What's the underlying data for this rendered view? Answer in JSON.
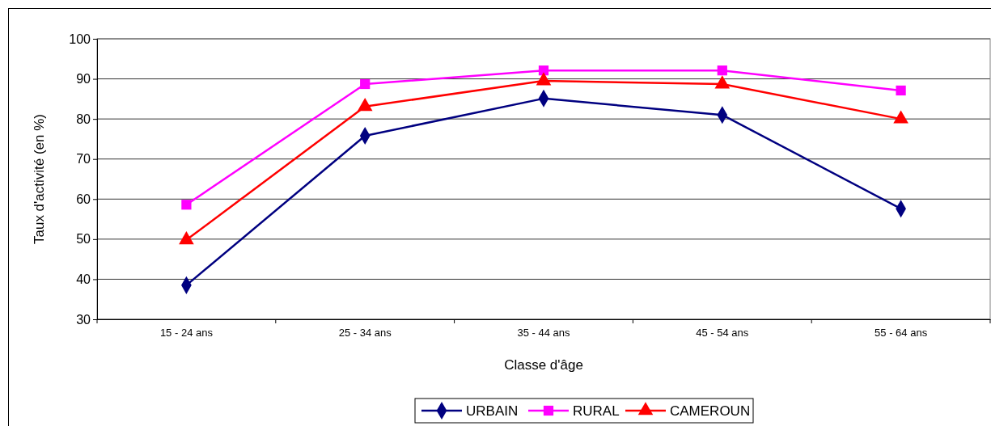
{
  "chart_data": {
    "type": "line",
    "xlabel": "Classe d'âge",
    "ylabel": "Taux d'activité (en %)",
    "categories": [
      "15 - 24 ans",
      "25 - 34 ans",
      "35 - 44 ans",
      "45 - 54 ans",
      "55 - 64 ans"
    ],
    "series": [
      {
        "name": "URBAIN",
        "color": "#000080",
        "marker": "diamond",
        "values": [
          38.5,
          75.8,
          85.1,
          81.0,
          57.6
        ]
      },
      {
        "name": "RURAL",
        "color": "#ff00ff",
        "marker": "square",
        "values": [
          58.6,
          88.7,
          92.1,
          92.1,
          87.1
        ]
      },
      {
        "name": "CAMEROUN",
        "color": "#ff0000",
        "marker": "triangle",
        "values": [
          49.8,
          83.1,
          89.5,
          88.7,
          80.0
        ]
      }
    ],
    "ylim": [
      30,
      100
    ],
    "yticks": [
      30,
      40,
      50,
      60,
      70,
      80,
      90,
      100
    ],
    "grid": "y",
    "legend": "bottom"
  }
}
